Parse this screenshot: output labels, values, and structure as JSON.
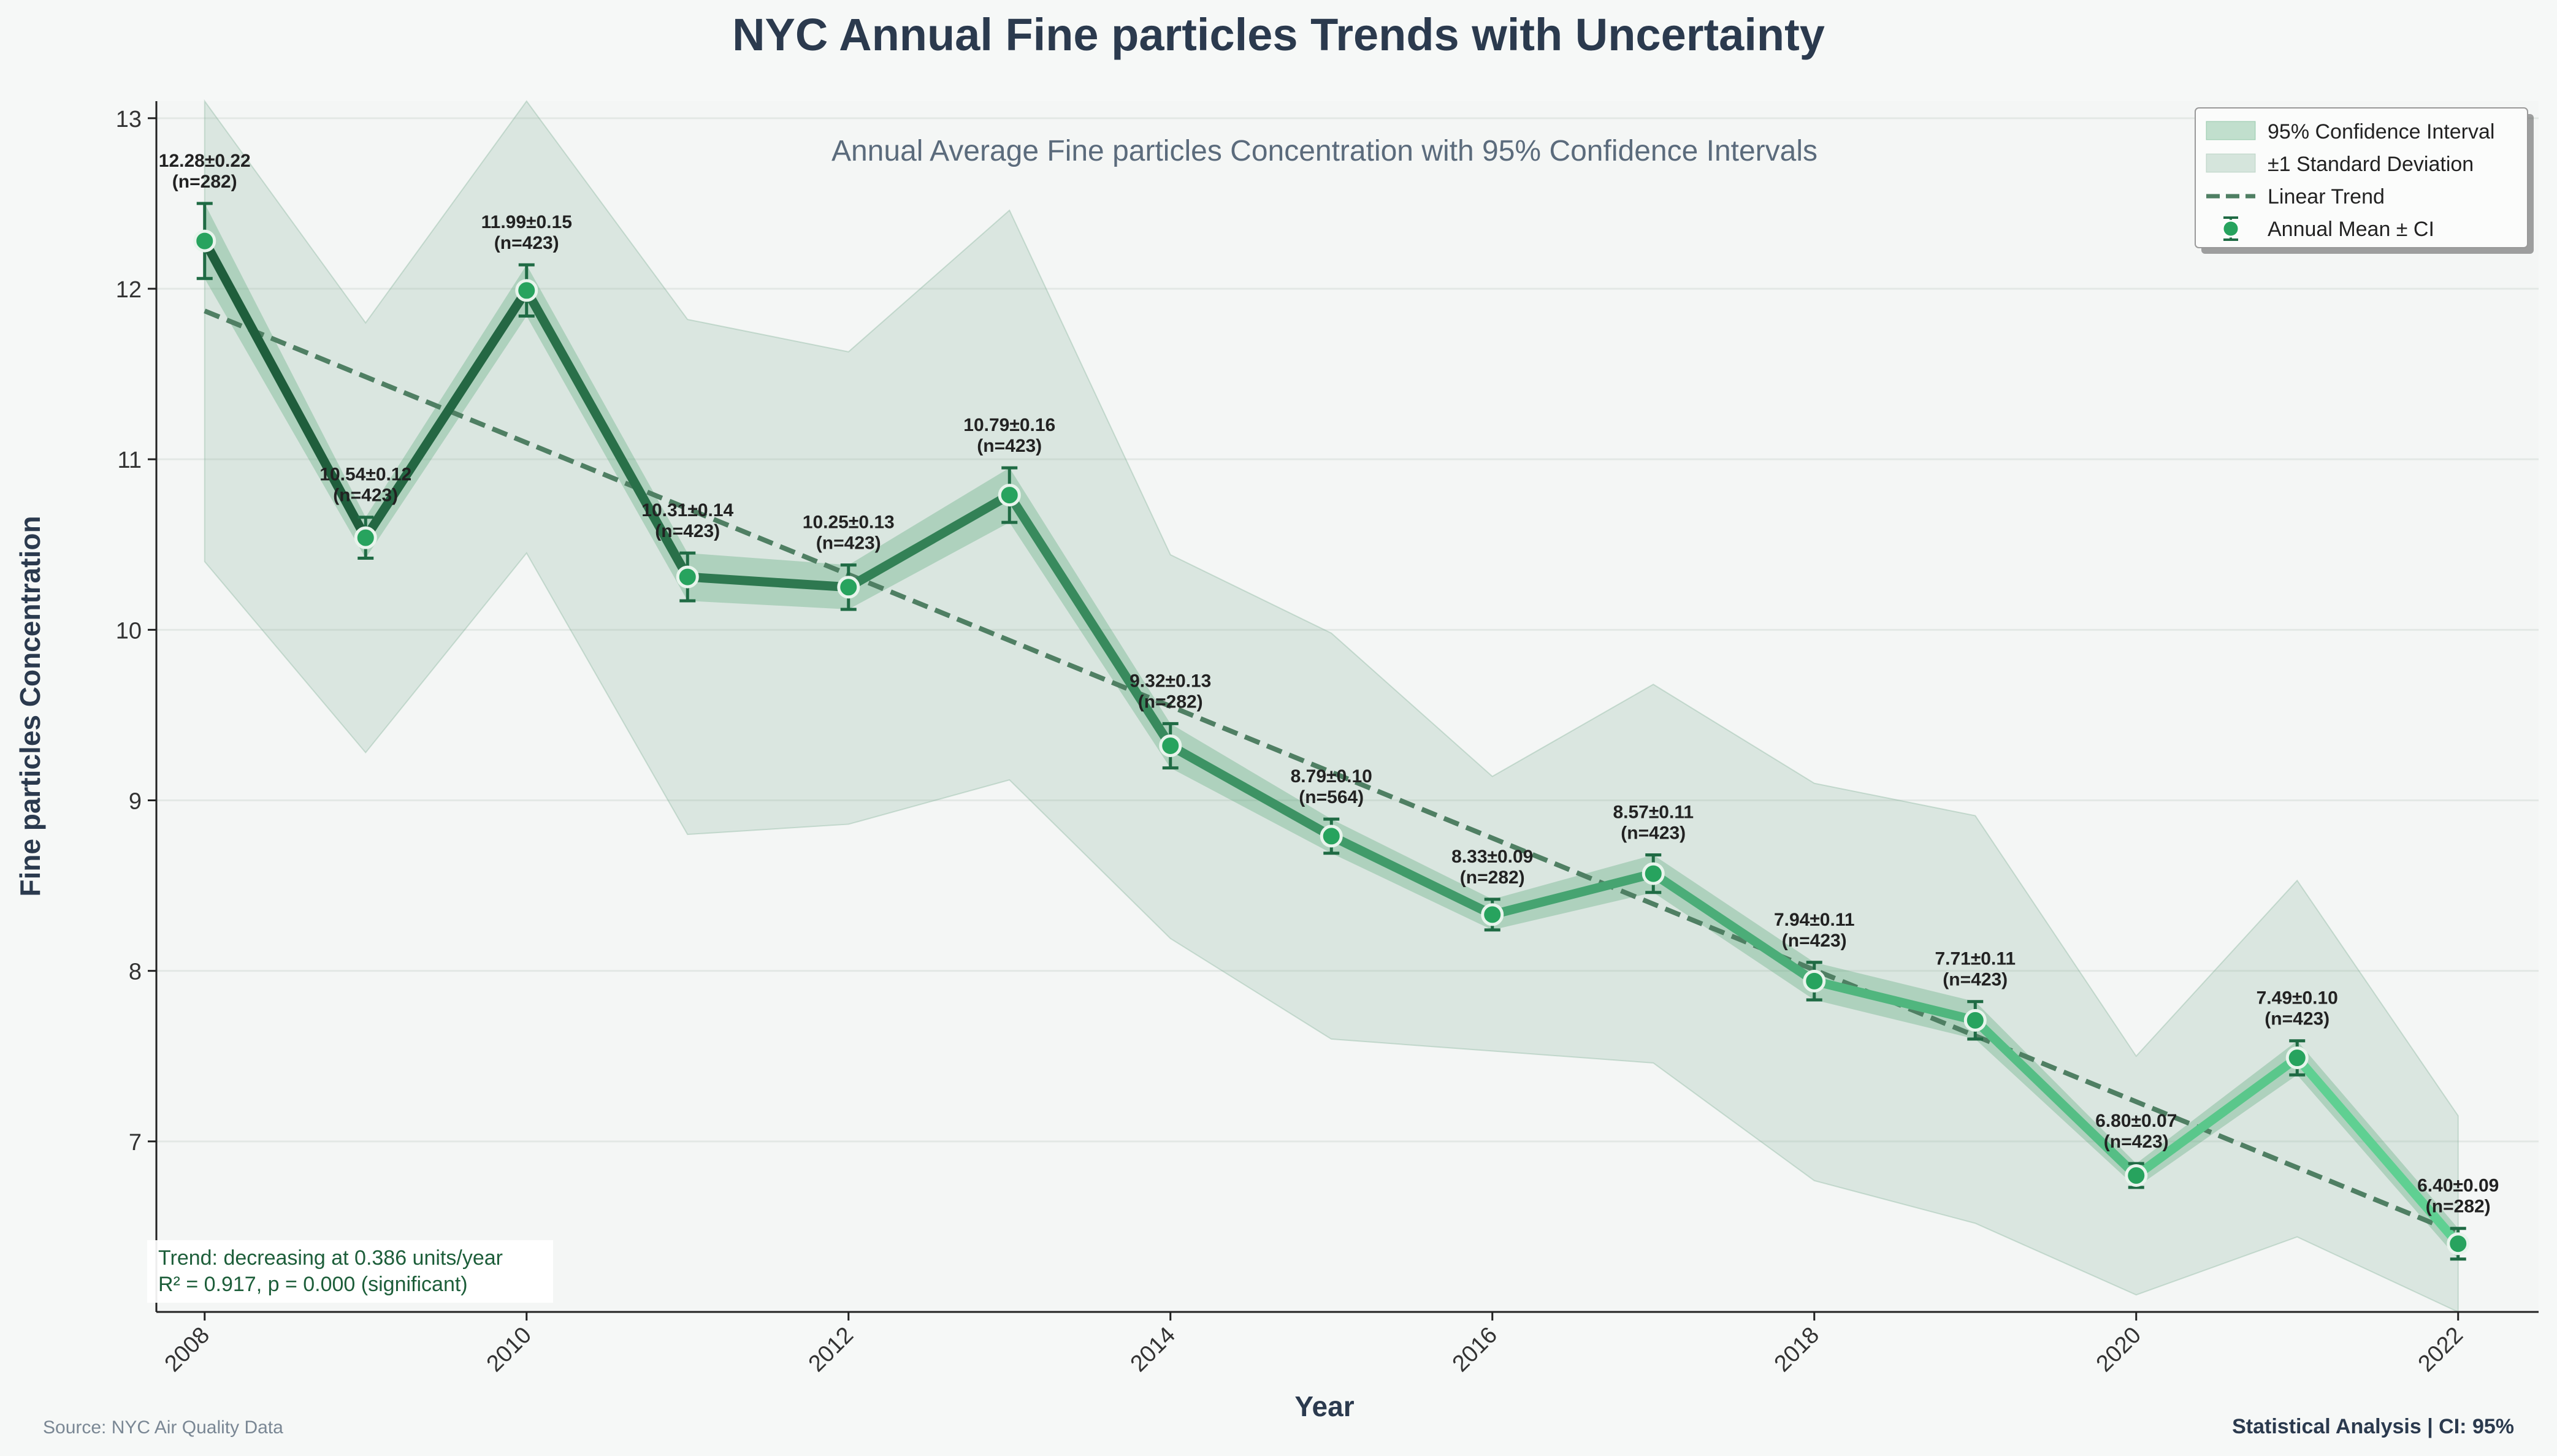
{
  "title": "NYC Annual Fine particles Trends with Uncertainty",
  "subtitle": "Annual Average Fine particles Concentration with 95% Confidence Intervals",
  "footer_left": "Source: NYC Air Quality Data",
  "footer_right": "Statistical Analysis | CI: 95%",
  "stats_box": {
    "line1": "Trend: decreasing at 0.386 units/year",
    "line2": "R² = 0.917, p = 0.000 (significant)"
  },
  "colors": {
    "line_dark": "#1f6b44",
    "line_light": "#58c98a",
    "ci_fill": "#3c9a64",
    "sd_fill": "#7fae95",
    "trend": "#4f7f63",
    "marker": "#27a35e",
    "title": "#2b3a4e"
  },
  "legend": {
    "ci": "95% Confidence Interval",
    "sd": "±1 Standard Deviation",
    "trend": "Linear Trend",
    "mean": "Annual Mean ± CI"
  },
  "chart_data": {
    "type": "line",
    "xlabel": "Year",
    "ylabel": "Fine particles Concentration",
    "xlim": [
      2007.7,
      2022.5
    ],
    "ylim": [
      6.0,
      13.1
    ],
    "x_ticks": [
      "2008",
      "2010",
      "2012",
      "2014",
      "2016",
      "2018",
      "2020",
      "2022"
    ],
    "y_ticks": [
      "7",
      "8",
      "9",
      "10",
      "11",
      "12",
      "13"
    ],
    "grid": true,
    "legend_position": "top-right",
    "series": [
      {
        "x": [
          2008,
          2009,
          2010,
          2011,
          2012,
          2013,
          2014,
          2015,
          2016,
          2017,
          2018,
          2019,
          2020,
          2021,
          2022
        ],
        "mean": [
          12.28,
          10.54,
          11.99,
          10.31,
          10.25,
          10.79,
          9.32,
          8.79,
          8.33,
          8.57,
          7.94,
          7.71,
          6.8,
          7.49,
          6.4
        ],
        "ci": [
          0.22,
          0.12,
          0.15,
          0.14,
          0.13,
          0.16,
          0.13,
          0.1,
          0.09,
          0.11,
          0.11,
          0.11,
          0.07,
          0.1,
          0.09
        ],
        "n": [
          282,
          423,
          423,
          423,
          423,
          423,
          282,
          564,
          282,
          423,
          423,
          423,
          423,
          423,
          282
        ],
        "sd_low": [
          10.4,
          9.28,
          10.45,
          8.8,
          8.86,
          9.12,
          8.19,
          7.6,
          7.53,
          7.46,
          6.77,
          6.52,
          6.1,
          6.44,
          5.7
        ],
        "sd_high": [
          13.6,
          11.8,
          13.55,
          11.82,
          11.63,
          12.46,
          10.44,
          9.98,
          9.14,
          9.68,
          9.1,
          8.91,
          7.5,
          8.53,
          7.15
        ],
        "labels": [
          "12.28±0.22",
          "10.54±0.12",
          "11.99±0.15",
          "10.31±0.14",
          "10.25±0.13",
          "10.79±0.16",
          "9.32±0.13",
          "8.79±0.10",
          "8.33±0.09",
          "8.57±0.11",
          "7.94±0.11",
          "7.71±0.11",
          "6.80±0.07",
          "7.49±0.10",
          "6.40±0.09"
        ],
        "n_labels": [
          "(n=282)",
          "(n=423)",
          "(n=423)",
          "(n=423)",
          "(n=423)",
          "(n=423)",
          "(n=282)",
          "(n=564)",
          "(n=282)",
          "(n=423)",
          "(n=423)",
          "(n=423)",
          "(n=423)",
          "(n=423)",
          "(n=282)"
        ]
      }
    ],
    "trend": {
      "slope": -0.386,
      "x": [
        2008,
        2022
      ],
      "y": [
        11.87,
        6.46
      ]
    }
  }
}
